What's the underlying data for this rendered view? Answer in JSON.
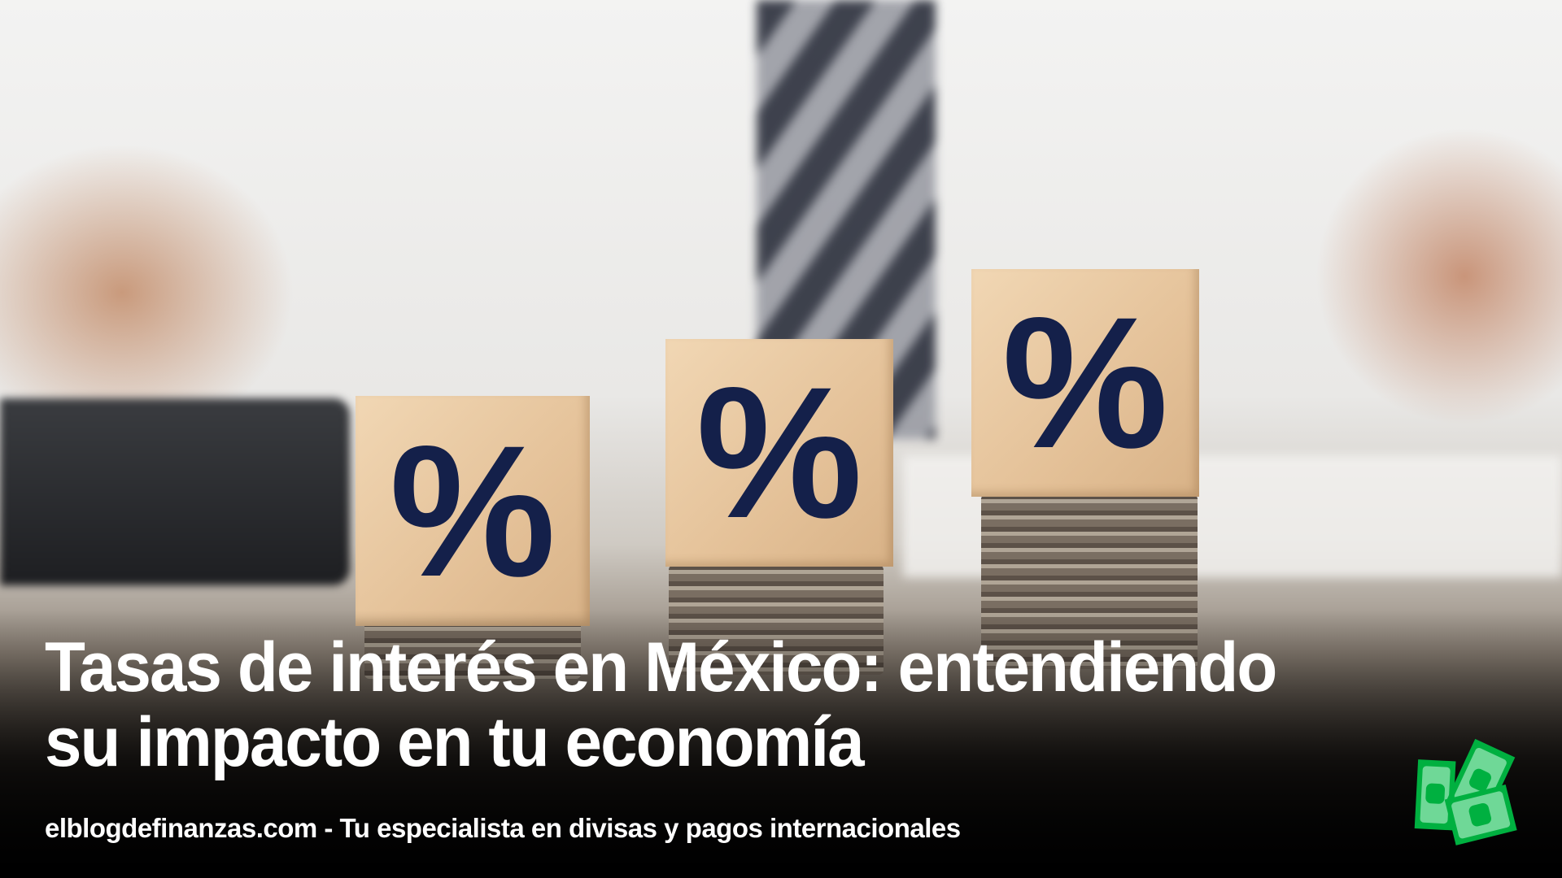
{
  "title_lines": [
    "Tasas de interés en México: entendiendo",
    "su impacto en tu economía"
  ],
  "footer": "elblogdefinanzas.com - Tu especialista en divisas y pagos internacionales",
  "blocks": [
    {
      "symbol": "%"
    },
    {
      "symbol": "%"
    },
    {
      "symbol": "%"
    }
  ],
  "logo": {
    "icon": "money-bills-icon",
    "colors": {
      "dark": "#00b040",
      "light": "#6fd897"
    }
  },
  "colors": {
    "symbol": "#14204a",
    "text": "#ffffff"
  }
}
